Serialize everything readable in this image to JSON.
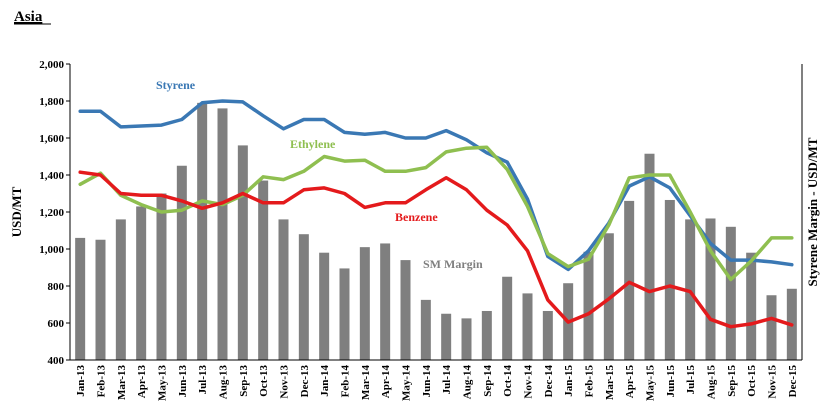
{
  "chart_data": {
    "type": "bar+line",
    "title": "Asia",
    "ylabel": "USD/MT",
    "y2label": "Styrene Margin - USD/MT",
    "ylim": [
      400,
      2000
    ],
    "yticks": [
      "2,000",
      "1,800",
      "1,600",
      "1,400",
      "1,200",
      "1,000",
      "800",
      "600",
      "400"
    ],
    "ytick_values": [
      2000,
      1800,
      1600,
      1400,
      1200,
      1000,
      800,
      600,
      400
    ],
    "categories": [
      "Jan-13",
      "Feb-13",
      "Mar-13",
      "Apr-13",
      "May-13",
      "Jun-13",
      "Jul-13",
      "Aug-13",
      "Sep-13",
      "Oct-13",
      "Nov-13",
      "Dec-13",
      "Jan-14",
      "Feb-14",
      "Mar-14",
      "Apr-14",
      "May-14",
      "Jun-14",
      "Jul-14",
      "Aug-14",
      "Sep-14",
      "Oct-14",
      "Nov-14",
      "Dec-14",
      "Jan-15",
      "Feb-15",
      "Mar-15",
      "Apr-15",
      "May-15",
      "Jun-15",
      "Jul-15",
      "Aug-15",
      "Sep-15",
      "Oct-15",
      "Nov-15",
      "Dec-15"
    ],
    "bars": {
      "name": "SM Margin",
      "color": "#7f7f7f",
      "values": [
        1060,
        1050,
        1160,
        1230,
        1300,
        1450,
        1790,
        1760,
        1560,
        1370,
        1160,
        1080,
        980,
        895,
        1010,
        1030,
        940,
        725,
        650,
        625,
        665,
        850,
        760,
        665,
        815,
        985,
        1085,
        1260,
        1515,
        1265,
        1160,
        1165,
        1120,
        980,
        750,
        785
      ]
    },
    "series": [
      {
        "name": "Styrene",
        "color": "#3a78b4",
        "values": [
          1745,
          1745,
          1660,
          1665,
          1670,
          1700,
          1790,
          1800,
          1795,
          1720,
          1650,
          1700,
          1700,
          1630,
          1620,
          1630,
          1600,
          1600,
          1640,
          1590,
          1520,
          1470,
          1270,
          960,
          890,
          990,
          1140,
          1340,
          1390,
          1330,
          1180,
          1030,
          940,
          940,
          930,
          915
        ]
      },
      {
        "name": "Ethylene",
        "color": "#8fbf50",
        "values": [
          1350,
          1410,
          1290,
          1240,
          1200,
          1210,
          1260,
          1240,
          1290,
          1390,
          1375,
          1420,
          1500,
          1475,
          1480,
          1420,
          1420,
          1440,
          1525,
          1545,
          1550,
          1430,
          1230,
          975,
          905,
          945,
          1130,
          1385,
          1400,
          1400,
          1200,
          990,
          835,
          935,
          1060,
          1060
        ]
      },
      {
        "name": "Benzene",
        "color": "#e41a1c",
        "values": [
          1415,
          1400,
          1300,
          1290,
          1290,
          1260,
          1220,
          1250,
          1300,
          1250,
          1250,
          1320,
          1330,
          1300,
          1225,
          1250,
          1250,
          1320,
          1385,
          1320,
          1210,
          1130,
          990,
          725,
          605,
          650,
          730,
          820,
          770,
          800,
          770,
          620,
          580,
          595,
          625,
          590
        ]
      }
    ],
    "annotations": [
      {
        "series": "Styrene",
        "text": "Styrene"
      },
      {
        "series": "Ethylene",
        "text": "Ethylene"
      },
      {
        "series": "Benzene",
        "text": "Benzene"
      },
      {
        "series": "SM Margin",
        "text": "SM Margin"
      }
    ]
  }
}
